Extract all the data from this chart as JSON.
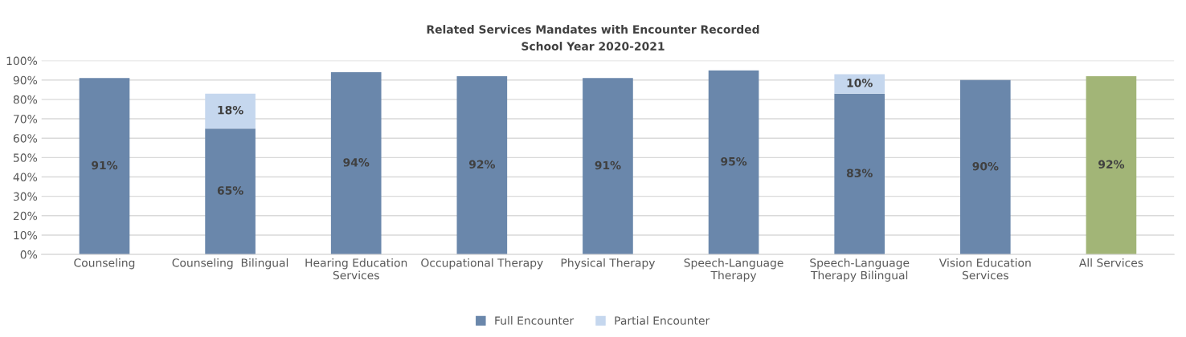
{
  "chart_data": {
    "type": "bar",
    "stacked": true,
    "title": "Related Services Mandates with Encounter Recorded",
    "subtitle": "School Year 2020-2021",
    "categories": [
      "Counseling",
      "Counseling  Bilingual",
      "Hearing Education\nServices",
      "Occupational Therapy",
      "Physical Therapy",
      "Speech-Language\nTherapy",
      "Speech-Language\nTherapy Bilingual",
      "Vision Education\nServices",
      "All Services"
    ],
    "series": [
      {
        "name": "Full Encounter",
        "color": "#6a87ab",
        "colors": [
          "#6a87ab",
          "#6a87ab",
          "#6a87ab",
          "#6a87ab",
          "#6a87ab",
          "#6a87ab",
          "#6a87ab",
          "#6a87ab",
          "#a2b577"
        ],
        "values": [
          91,
          65,
          94,
          92,
          91,
          95,
          83,
          90,
          92
        ],
        "value_labels": [
          "91%",
          "65%",
          "94%",
          "92%",
          "91%",
          "95%",
          "83%",
          "90%",
          "92%"
        ]
      },
      {
        "name": "Partial Encounter",
        "color": "#c5d7ee",
        "values": [
          null,
          18,
          null,
          null,
          null,
          null,
          10,
          null,
          null
        ],
        "value_labels": [
          null,
          "18%",
          null,
          null,
          null,
          null,
          "10%",
          null,
          null
        ]
      }
    ],
    "ylim": [
      0,
      100
    ],
    "yticks": [
      {
        "value": 0,
        "label": "0%"
      },
      {
        "value": 10,
        "label": "10%"
      },
      {
        "value": 20,
        "label": "20%"
      },
      {
        "value": 30,
        "label": "30%"
      },
      {
        "value": 40,
        "label": "40%"
      },
      {
        "value": 50,
        "label": "50%"
      },
      {
        "value": 60,
        "label": "60%"
      },
      {
        "value": 70,
        "label": "70%"
      },
      {
        "value": 80,
        "label": "80%"
      },
      {
        "value": 90,
        "label": "90%"
      },
      {
        "value": 100,
        "label": "100%"
      }
    ],
    "grid": "y",
    "legend": "bottom"
  }
}
